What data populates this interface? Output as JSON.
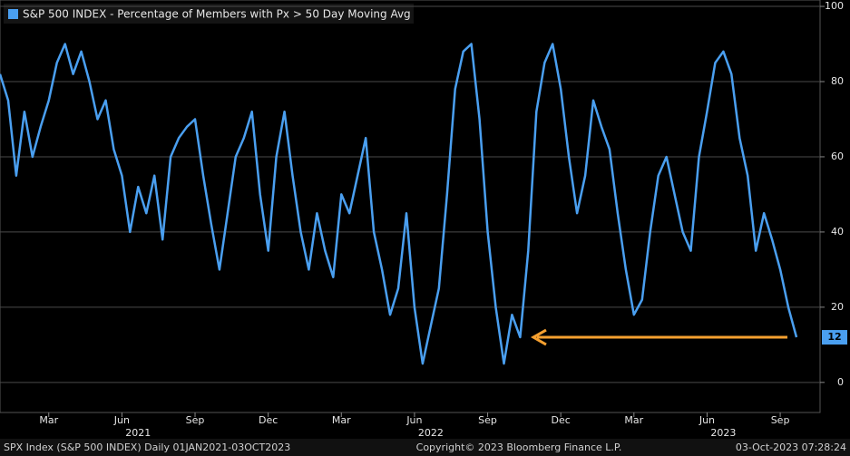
{
  "chart_data": {
    "type": "line",
    "title": "S&P 500 INDEX - Percentage of Members with Px > 50 Day Moving Avg",
    "categories": [
      null,
      null,
      null,
      null,
      null,
      null,
      "Mar",
      null,
      null,
      null,
      null,
      null,
      null,
      null,
      null,
      "Jun",
      null,
      null,
      null,
      null,
      null,
      null,
      null,
      null,
      "Sep",
      null,
      null,
      null,
      null,
      null,
      null,
      null,
      null,
      "Dec",
      null,
      null,
      null,
      null,
      null,
      null,
      null,
      null,
      "Mar",
      null,
      null,
      null,
      null,
      null,
      null,
      null,
      null,
      "Jun",
      null,
      null,
      null,
      null,
      null,
      null,
      null,
      null,
      "Sep",
      null,
      null,
      null,
      null,
      null,
      null,
      null,
      null,
      "Dec",
      null,
      null,
      null,
      null,
      null,
      null,
      null,
      null,
      "Mar",
      null,
      null,
      null,
      null,
      null,
      null,
      null,
      null,
      "Jun",
      null,
      null,
      null,
      null,
      null,
      null,
      null,
      null,
      "Sep",
      null,
      null
    ],
    "year_labels": [
      "2021",
      "2022",
      "2023"
    ],
    "series": [
      {
        "name": "S&P 500 INDEX - Percentage of Members with Px > 50 Day Moving Avg",
        "color": "#4a9ff0",
        "values": [
          82,
          75,
          55,
          72,
          60,
          68,
          75,
          85,
          90,
          82,
          88,
          80,
          70,
          75,
          62,
          55,
          40,
          52,
          45,
          55,
          38,
          60,
          65,
          68,
          70,
          55,
          42,
          30,
          45,
          60,
          65,
          72,
          50,
          35,
          60,
          72,
          55,
          40,
          30,
          45,
          35,
          28,
          50,
          45,
          55,
          65,
          40,
          30,
          18,
          25,
          45,
          20,
          5,
          15,
          25,
          50,
          78,
          88,
          90,
          70,
          40,
          20,
          5,
          18,
          12,
          35,
          72,
          85,
          90,
          78,
          60,
          45,
          55,
          75,
          68,
          62,
          45,
          30,
          18,
          22,
          40,
          55,
          60,
          50,
          40,
          35,
          60,
          72,
          85,
          88,
          82,
          65,
          55,
          35,
          45,
          38,
          30,
          20,
          12
        ]
      }
    ],
    "ylim": [
      -8,
      101.7
    ],
    "yticks": [
      0,
      20,
      40,
      60,
      80,
      100
    ],
    "grid": true,
    "annotation_color": "#f5a030",
    "footer": {
      "left": "SPX Index (S&P 500 INDEX)  Daily 01JAN2021-03OCT2023",
      "center": "Copyright© 2023 Bloomberg Finance L.P.",
      "right": "03-Oct-2023 07:28:24"
    }
  }
}
